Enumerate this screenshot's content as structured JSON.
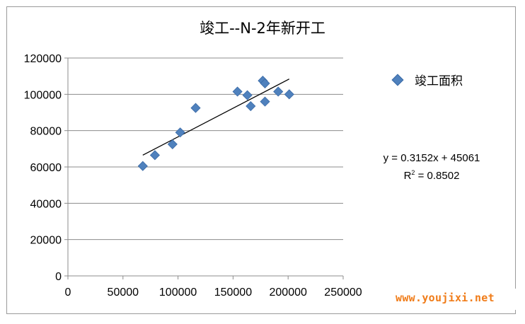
{
  "chart_data": {
    "type": "scatter",
    "title": "竣工--N-2年新开工",
    "xlim": [
      0,
      250000
    ],
    "ylim": [
      0,
      120000
    ],
    "x_ticks": [
      "0",
      "50000",
      "100000",
      "150000",
      "200000",
      "250000"
    ],
    "y_ticks": [
      "0",
      "20000",
      "40000",
      "60000",
      "80000",
      "100000",
      "120000"
    ],
    "grid": "horizontal",
    "legend_position": "right",
    "series": [
      {
        "name": "竣工面积",
        "color": "#4F81BD",
        "marker": "diamond",
        "points": [
          {
            "x": 68000,
            "y": 60500
          },
          {
            "x": 79000,
            "y": 66500
          },
          {
            "x": 95000,
            "y": 72500
          },
          {
            "x": 102000,
            "y": 79000
          },
          {
            "x": 116000,
            "y": 92500
          },
          {
            "x": 154000,
            "y": 101500
          },
          {
            "x": 163000,
            "y": 99500
          },
          {
            "x": 166000,
            "y": 93500
          },
          {
            "x": 177000,
            "y": 107500
          },
          {
            "x": 179000,
            "y": 106000
          },
          {
            "x": 179000,
            "y": 96000
          },
          {
            "x": 191000,
            "y": 101500
          },
          {
            "x": 201000,
            "y": 100000
          }
        ]
      }
    ],
    "trendline": {
      "slope": 0.3152,
      "intercept": 45061,
      "x_range": [
        68000,
        201000
      ],
      "equation_label": "y = 0.3152x + 45061",
      "r2_label_prefix": "R",
      "r2_label_sup": "2",
      "r2_label_value": " = 0.8502"
    }
  },
  "watermark": "www.youjixi.net"
}
